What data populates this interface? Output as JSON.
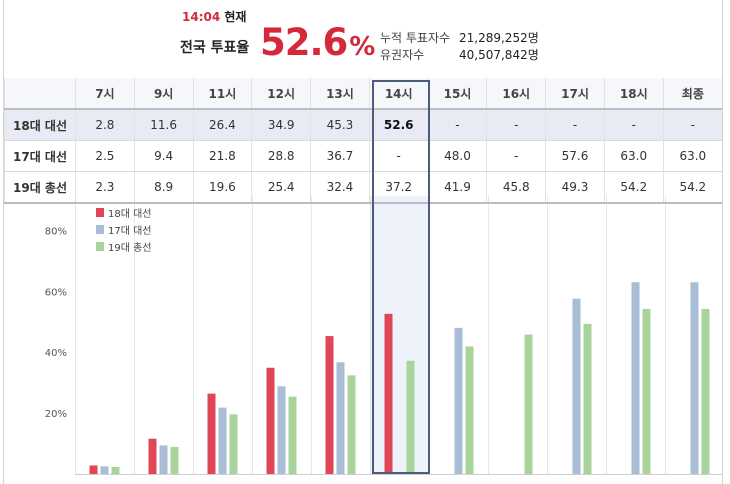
{
  "summary": {
    "time": "14:04",
    "time_suffix": "현재",
    "national_label": "전국 투표율",
    "rate_number": "52.6",
    "rate_unit": "%",
    "cumulative_label": "누적 투표자수",
    "cumulative_value": "21,289,252명",
    "eligible_label": "유권자수",
    "eligible_value": "40,507,842명"
  },
  "table": {
    "columns": [
      "7시",
      "9시",
      "11시",
      "12시",
      "13시",
      "14시",
      "15시",
      "16시",
      "17시",
      "18시",
      "최종"
    ],
    "rows": [
      {
        "label": "18대 대선",
        "cells": [
          "2.8",
          "11.6",
          "26.4",
          "34.9",
          "45.3",
          "52.6",
          "-",
          "-",
          "-",
          "-",
          "-"
        ]
      },
      {
        "label": "17대 대선",
        "cells": [
          "2.5",
          "9.4",
          "21.8",
          "28.8",
          "36.7",
          "-",
          "48.0",
          "-",
          "57.6",
          "63.0",
          "63.0"
        ]
      },
      {
        "label": "19대 총선",
        "cells": [
          "2.3",
          "8.9",
          "19.6",
          "25.4",
          "32.4",
          "37.2",
          "41.9",
          "45.8",
          "49.3",
          "54.2",
          "54.2"
        ]
      }
    ]
  },
  "chart_data": {
    "type": "bar",
    "categories": [
      "7시",
      "9시",
      "11시",
      "12시",
      "13시",
      "14시",
      "15시",
      "16시",
      "17시",
      "18시",
      "최종"
    ],
    "series": [
      {
        "name": "18대 대선",
        "color": "#e04655",
        "values": [
          2.8,
          11.6,
          26.4,
          34.9,
          45.3,
          52.6,
          null,
          null,
          null,
          null,
          null
        ]
      },
      {
        "name": "17대 대선",
        "color": "#a9bed6",
        "values": [
          2.5,
          9.4,
          21.8,
          28.8,
          36.7,
          null,
          48.0,
          null,
          57.6,
          63.0,
          63.0
        ]
      },
      {
        "name": "19대 총선",
        "color": "#a8d39b",
        "values": [
          2.3,
          8.9,
          19.6,
          25.4,
          32.4,
          37.2,
          41.9,
          45.8,
          49.3,
          54.2,
          54.2
        ]
      }
    ],
    "y_ticks": [
      "20%",
      "40%",
      "60%",
      "80%"
    ],
    "y_tick_values": [
      20,
      40,
      60,
      80
    ],
    "ylim": [
      0,
      90
    ],
    "legend": "top-left",
    "highlight_category": "14시",
    "highlight_color": "#4c5c7d",
    "highlight_fill": "#eef3fb"
  }
}
